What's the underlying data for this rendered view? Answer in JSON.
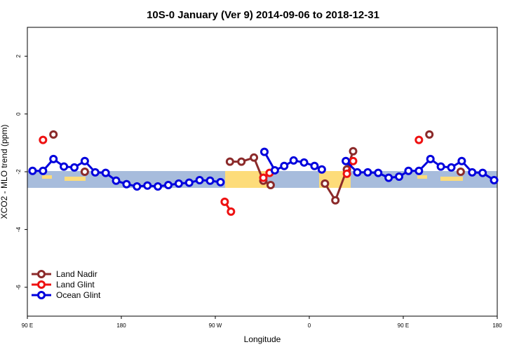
{
  "chart_data": {
    "type": "line",
    "title": "10S-0 January (Ver 9)   2014-09-06 to 2018-12-31",
    "x_label": "Longitude",
    "y_label": "XCO2 - MLO trend (ppm)",
    "xlim": [
      90,
      540
    ],
    "xticks": [
      {
        "value": 90,
        "label": "90 E"
      },
      {
        "value": 180,
        "label": "180"
      },
      {
        "value": 270,
        "label": "90 W"
      },
      {
        "value": 360,
        "label": "0"
      },
      {
        "value": 450,
        "label": "90 E"
      },
      {
        "value": 540,
        "label": "180"
      }
    ],
    "ylim": [
      -7,
      3
    ],
    "yticks": [
      -6,
      -4,
      -2,
      0,
      2
    ],
    "legend": "bottom-left",
    "series": [
      {
        "name": "Land Nadir",
        "color": "#8b2a2a",
        "x": [
          115,
          125,
          145,
          155,
          284,
          295,
          307,
          316,
          323,
          345,
          375,
          385,
          396,
          402,
          435,
          475,
          485,
          505
        ],
        "values": [
          -0.71,
          null,
          -2.0,
          null,
          -1.65,
          -1.65,
          -1.51,
          -2.31,
          -2.46,
          null,
          -2.41,
          -2.99,
          -1.92,
          -1.29,
          null,
          -0.71,
          null,
          -2.0
        ]
      },
      {
        "name": "Land Glint",
        "color": "#ee1111",
        "x": [
          105,
          200,
          279,
          285,
          290,
          316,
          322,
          340,
          396,
          402,
          430,
          465
        ],
        "values": [
          -0.9,
          null,
          -3.04,
          -3.38,
          null,
          -2.21,
          -2.04,
          null,
          -2.07,
          -1.63,
          null,
          -0.9
        ]
      },
      {
        "name": "Ocean Glint",
        "color": "#0000dd",
        "x": [
          95,
          105,
          115,
          125,
          135,
          145,
          155,
          165,
          175,
          185,
          195,
          205,
          215,
          225,
          235,
          245,
          255,
          265,
          275,
          295,
          317,
          327,
          336,
          345,
          355,
          365,
          372,
          385,
          395,
          406,
          416,
          426,
          436,
          446,
          455,
          465,
          476,
          486,
          496,
          506,
          516,
          526,
          537
        ],
        "values": [
          -1.97,
          -1.97,
          -1.56,
          -1.82,
          -1.85,
          -1.63,
          -2.02,
          -2.04,
          -2.31,
          -2.43,
          -2.51,
          -2.48,
          -2.51,
          -2.46,
          -2.41,
          -2.38,
          -2.29,
          -2.31,
          -2.36,
          null,
          -1.31,
          -1.95,
          -1.8,
          -1.61,
          -1.68,
          -1.8,
          -1.92,
          null,
          -1.63,
          -2.02,
          -2.02,
          -2.04,
          -2.21,
          -2.17,
          -1.97,
          -1.97,
          -1.56,
          -1.82,
          -1.85,
          -1.63,
          -2.02,
          -2.04,
          -2.29
        ]
      }
    ]
  }
}
